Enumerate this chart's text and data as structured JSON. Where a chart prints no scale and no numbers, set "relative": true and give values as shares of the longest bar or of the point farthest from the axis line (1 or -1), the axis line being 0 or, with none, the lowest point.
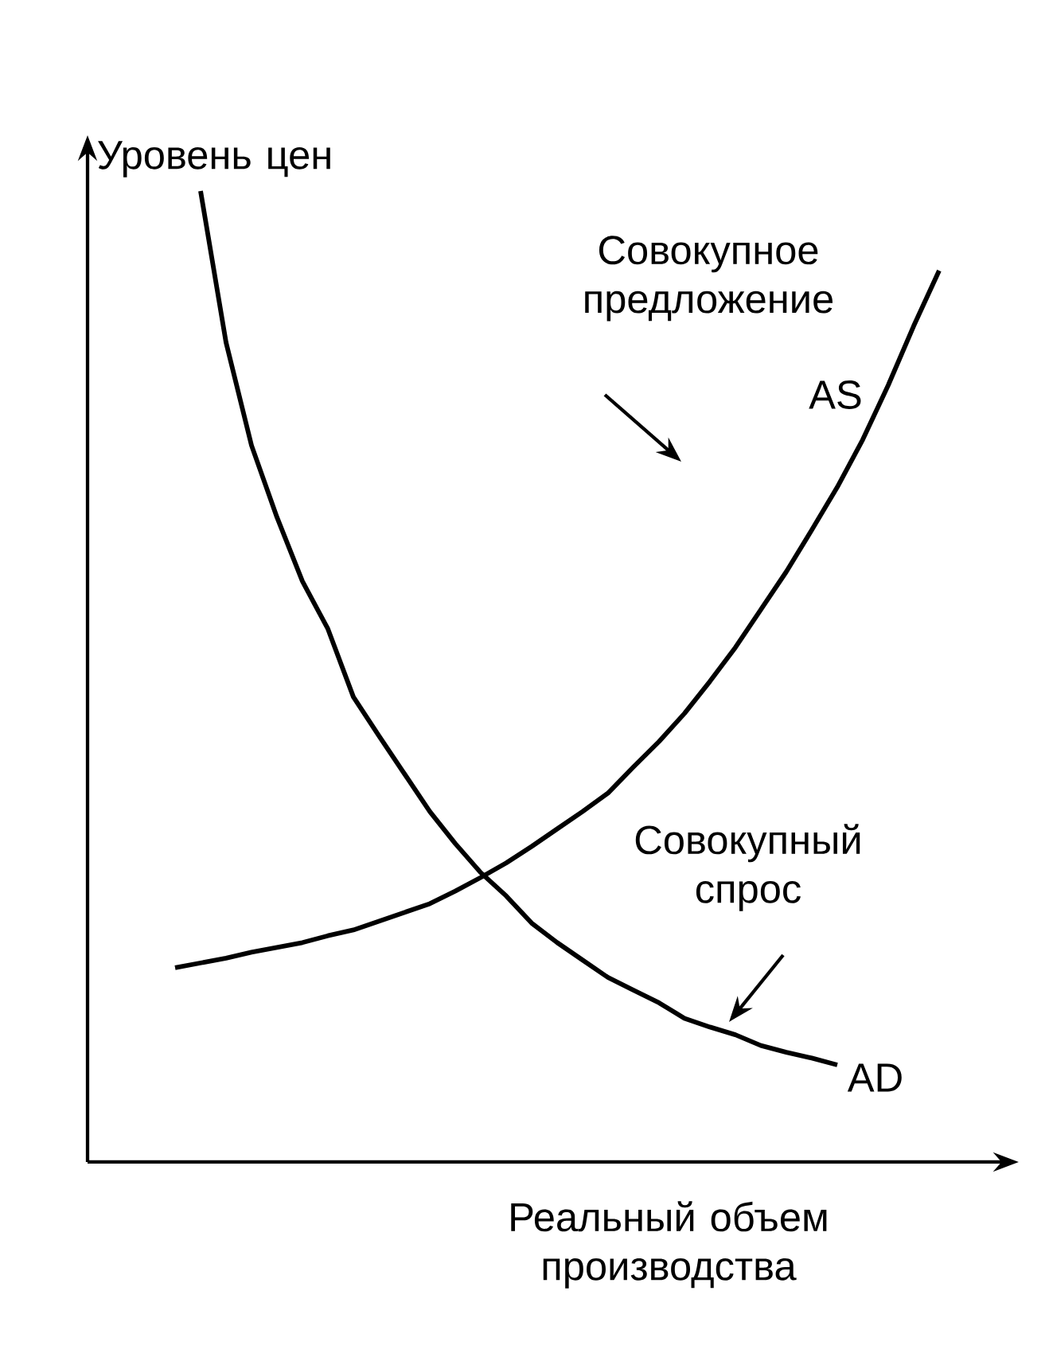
{
  "chart_data": {
    "type": "line",
    "relative": true,
    "xlabel": "Реальный объем производства",
    "ylabel": "Уровень цен",
    "legend": false,
    "marker": "none",
    "line_style": "solid",
    "categories": [
      null,
      null,
      null,
      null,
      null,
      null,
      null,
      null,
      null,
      null,
      null,
      null,
      null,
      null,
      null,
      null,
      null,
      null,
      null,
      null,
      null,
      null,
      null,
      null,
      null,
      null,
      null,
      null,
      null,
      null,
      null
    ],
    "series": [
      {
        "name": "AS",
        "color": "#000000",
        "values": [
          0.2,
          0.205,
          0.21,
          0.216,
          0.221,
          0.226,
          0.233,
          0.239,
          0.248,
          0.257,
          0.266,
          0.279,
          0.293,
          0.308,
          0.325,
          0.343,
          0.361,
          0.38,
          0.407,
          0.433,
          0.462,
          0.495,
          0.53,
          0.569,
          0.608,
          0.651,
          0.695,
          0.744,
          0.8,
          0.861,
          0.918
        ]
      },
      {
        "name": "AD",
        "color": "#000000",
        "values": [
          null,
          1.0,
          0.844,
          0.738,
          0.664,
          0.598,
          0.549,
          0.479,
          0.439,
          0.4,
          0.361,
          0.328,
          0.298,
          0.274,
          0.246,
          0.226,
          0.208,
          0.19,
          0.177,
          0.164,
          0.148,
          0.139,
          0.131,
          0.12,
          0.113,
          0.107,
          0.1,
          null,
          null,
          null,
          null
        ]
      }
    ],
    "annotations": [
      "Совокупное предложение",
      "Совокупный спрос"
    ]
  }
}
